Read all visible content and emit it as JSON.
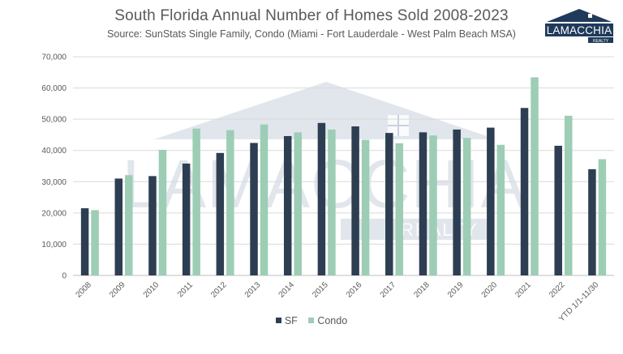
{
  "brand": {
    "logo_text": "LAMACCHIA",
    "logo_subtext": "REALTY",
    "watermark_text": "LAMACCHIA",
    "watermark_subtext": "REALTY",
    "navy": "#1f3a5a",
    "watermark_color": "#c9d2de"
  },
  "chart_data": {
    "type": "bar",
    "title": "South Florida Annual Number of Homes Sold 2008-2023",
    "subtitle": "Source: SunStats Single Family, Condo (Miami - Fort Lauderdale - West Palm Beach MSA)",
    "categories": [
      "2008",
      "2009",
      "2010",
      "2011",
      "2012",
      "2013",
      "2014",
      "2015",
      "2016",
      "2017",
      "2018",
      "2019",
      "2020",
      "2021",
      "2022",
      "YTD 1/1-11/30"
    ],
    "series": [
      {
        "name": "SF",
        "color": "#2e3e52",
        "values": [
          21500,
          31000,
          31800,
          35800,
          39200,
          42400,
          44600,
          48800,
          47700,
          45600,
          45800,
          46700,
          47300,
          53600,
          41500,
          34000
        ]
      },
      {
        "name": "Condo",
        "color": "#9dcdb5",
        "values": [
          20900,
          32100,
          40200,
          47000,
          46500,
          48300,
          45800,
          46700,
          43400,
          42300,
          44800,
          44000,
          41800,
          63400,
          51100,
          37200
        ]
      }
    ],
    "yticks": [
      0,
      10000,
      20000,
      30000,
      40000,
      50000,
      60000,
      70000
    ],
    "ytick_labels": [
      "0",
      "10,000",
      "20,000",
      "30,000",
      "40,000",
      "50,000",
      "60,000",
      "70,000"
    ],
    "ylim": [
      0,
      70000
    ],
    "grid": true,
    "legend_position": "bottom",
    "xlabel": "",
    "ylabel": ""
  }
}
